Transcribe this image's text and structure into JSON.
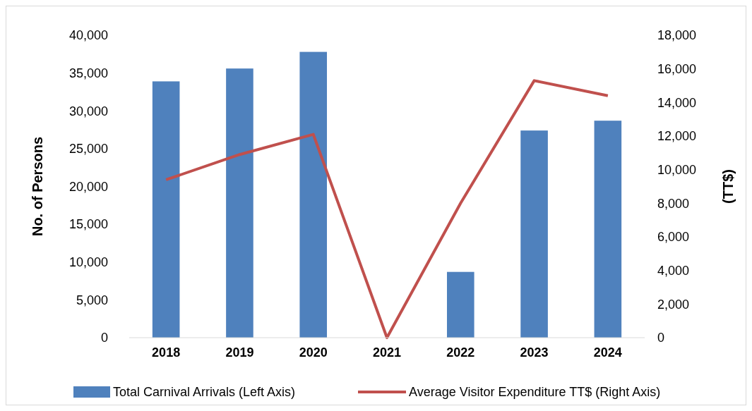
{
  "chart_data": {
    "type": "bar",
    "categories": [
      "2018",
      "2019",
      "2020",
      "2021",
      "2022",
      "2023",
      "2024"
    ],
    "series": [
      {
        "name": "Total Carnival Arrivals (Left Axis)",
        "color": "#4f81bd",
        "values": [
          33900,
          35600,
          37800,
          0,
          8700,
          27400,
          28700
        ]
      },
      {
        "name": "Average Visitor Expenditure TT$ (Right Axis)",
        "type": "line",
        "axis": "y2",
        "color": "#c0504d",
        "values": [
          9400,
          10900,
          12100,
          0,
          8000,
          15300,
          14400
        ]
      }
    ],
    "ylabel": "No. of Persons",
    "y2label": "(TT$)",
    "ylim": [
      0,
      40000
    ],
    "yticks": [
      0,
      {
        "value": 5000,
        "label": "5,000"
      },
      {
        "value": 10000,
        "label": "10,000"
      },
      {
        "value": 15000,
        "label": "15,000"
      },
      {
        "value": 20000,
        "label": "20,000"
      },
      {
        "value": 25000,
        "label": "25,000"
      },
      {
        "value": 30000,
        "label": "30,000"
      },
      {
        "value": 35000,
        "label": "35,000"
      },
      {
        "value": 40000,
        "label": "40,000"
      }
    ],
    "y2lim": [
      0,
      18000
    ],
    "y2ticks": [
      0,
      {
        "value": 2000,
        "label": "2,000"
      },
      {
        "value": 4000,
        "label": "4,000"
      },
      {
        "value": 6000,
        "label": "6,000"
      },
      {
        "value": 8000,
        "label": "8,000"
      },
      {
        "value": 10000,
        "label": "10,000"
      },
      {
        "value": 12000,
        "label": "12,000"
      },
      {
        "value": 14000,
        "label": "14,000"
      },
      {
        "value": 16000,
        "label": "16,000"
      },
      {
        "value": 18000,
        "label": "18,000"
      }
    ],
    "grid": false,
    "legend": "bottom"
  }
}
